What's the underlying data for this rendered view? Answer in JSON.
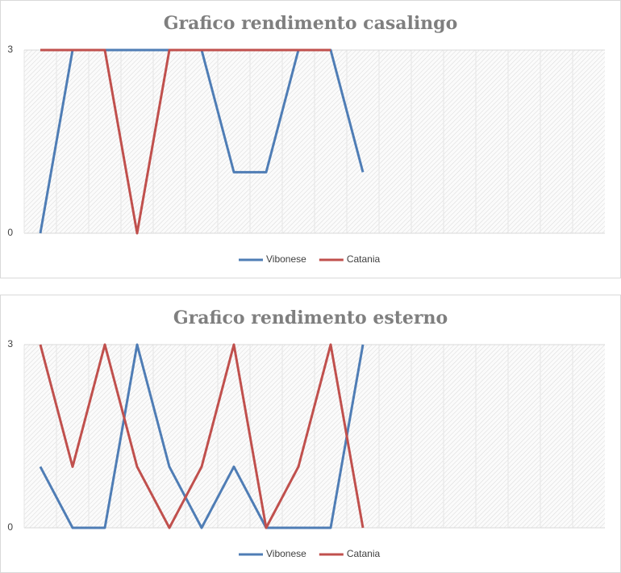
{
  "chart_data": [
    {
      "type": "line",
      "title": "Grafico rendimento casalingo",
      "categories": [
        null,
        null,
        null,
        null,
        null,
        null,
        null,
        null,
        null,
        null,
        null,
        null,
        null,
        null,
        null,
        null,
        null,
        null
      ],
      "series": [
        {
          "name": "Vibonese",
          "color": "#4f7db5",
          "values": [
            0,
            3,
            3,
            3,
            3,
            3,
            1,
            1,
            3,
            3,
            1,
            null,
            null,
            null,
            null,
            null,
            null,
            null
          ]
        },
        {
          "name": "Catania",
          "color": "#c0504d",
          "values": [
            3,
            3,
            3,
            0,
            3,
            3,
            3,
            3,
            3,
            3,
            null,
            null,
            null,
            null,
            null,
            null,
            null,
            null
          ]
        }
      ],
      "ylim": [
        0,
        3
      ],
      "yticks": [
        0,
        3
      ],
      "legend": "bottom"
    },
    {
      "type": "line",
      "title": "Grafico rendimento esterno",
      "categories": [
        null,
        null,
        null,
        null,
        null,
        null,
        null,
        null,
        null,
        null,
        null,
        null,
        null,
        null,
        null,
        null,
        null,
        null
      ],
      "series": [
        {
          "name": "Vibonese",
          "color": "#4f7db5",
          "values": [
            1,
            0,
            0,
            3,
            1,
            0,
            1,
            0,
            0,
            0,
            3,
            null,
            null,
            null,
            null,
            null,
            null,
            null
          ]
        },
        {
          "name": "Catania",
          "color": "#c0504d",
          "values": [
            3,
            1,
            3,
            1,
            0,
            1,
            3,
            0,
            1,
            3,
            0,
            null,
            null,
            null,
            null,
            null,
            null,
            null
          ]
        }
      ],
      "ylim": [
        0,
        3
      ],
      "yticks": [
        0,
        3
      ],
      "legend": "bottom"
    }
  ]
}
